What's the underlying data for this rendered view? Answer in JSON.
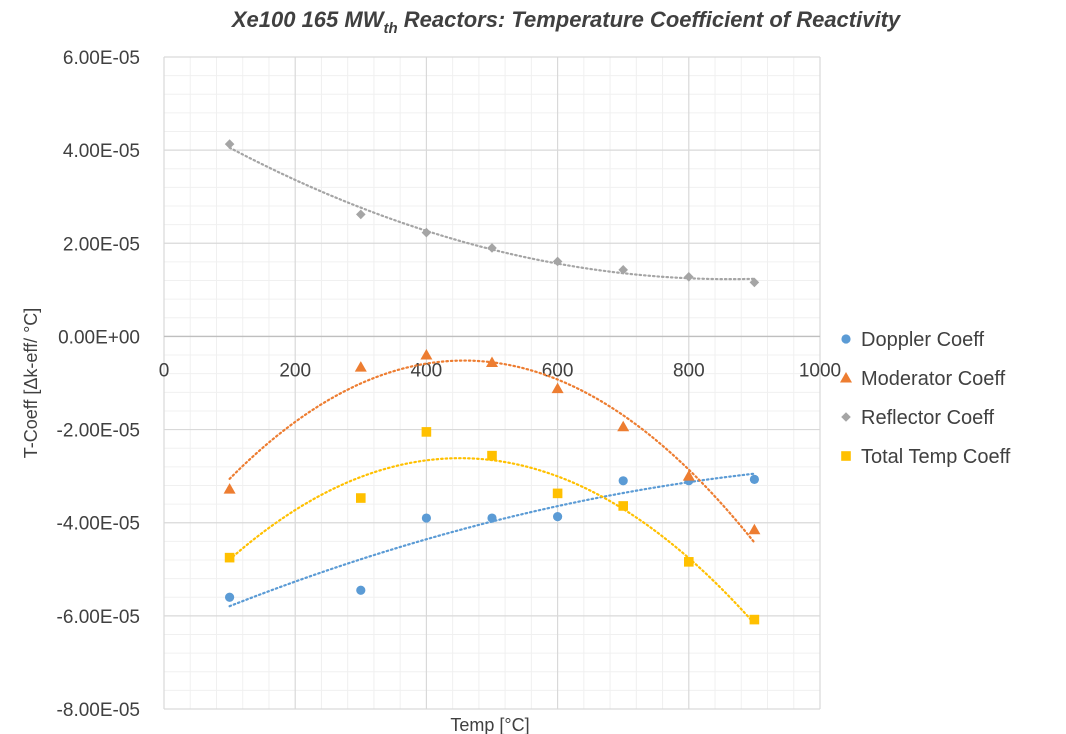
{
  "chart_data": {
    "type": "scatter",
    "title": "Xe100 165 MW",
    "title_sub": "th",
    "title_rest": " Reactors: Temperature Coefficient of Reactivity",
    "xlabel": "Temp [°C]",
    "ylabel": "T-Coeff [Δk-eff/ °C]",
    "xlim": [
      0,
      1000
    ],
    "ylim": [
      -8e-05,
      6e-05
    ],
    "x_ticks": [
      "0",
      "200",
      "400",
      "600",
      "800",
      "1000"
    ],
    "y_ticks": [
      "6.00E-05",
      "4.00E-05",
      "2.00E-05",
      "0.00E+00",
      "-2.00E-05",
      "-4.00E-05",
      "-6.00E-05",
      "-8.00E-05"
    ],
    "grid": true,
    "minor_grid": true,
    "trendlines": "dotted polynomial",
    "legend_position": "right",
    "series": [
      {
        "name": "Doppler Coeff",
        "color": "#5B9BD5",
        "marker": "circle",
        "x": [
          100,
          300,
          400,
          500,
          600,
          700,
          800,
          900
        ],
        "y": [
          -5.6e-05,
          -5.45e-05,
          -3.9e-05,
          -3.9e-05,
          -3.87e-05,
          -3.1e-05,
          -3.1e-05,
          -3.07e-05
        ]
      },
      {
        "name": "Moderator Coeff",
        "color": "#ED7D31",
        "marker": "triangle",
        "x": [
          100,
          300,
          400,
          500,
          600,
          700,
          800,
          900
        ],
        "y": [
          -3.28e-05,
          -6.6e-06,
          -4e-06,
          -5.6e-06,
          -1.12e-05,
          -1.94e-05,
          -3e-05,
          -4.15e-05
        ]
      },
      {
        "name": "Reflector Coeff",
        "color": "#A5A5A5",
        "marker": "diamond",
        "x": [
          100,
          300,
          400,
          500,
          600,
          700,
          800,
          900
        ],
        "y": [
          4.13e-05,
          2.62e-05,
          2.23e-05,
          1.9e-05,
          1.61e-05,
          1.43e-05,
          1.28e-05,
          1.16e-05
        ]
      },
      {
        "name": "Total Temp Coeff",
        "color": "#FFC000",
        "marker": "square",
        "x": [
          100,
          300,
          400,
          500,
          600,
          700,
          800,
          900
        ],
        "y": [
          -4.75e-05,
          -3.47e-05,
          -2.05e-05,
          -2.56e-05,
          -3.37e-05,
          -3.64e-05,
          -4.84e-05,
          -6.08e-05
        ]
      }
    ]
  }
}
